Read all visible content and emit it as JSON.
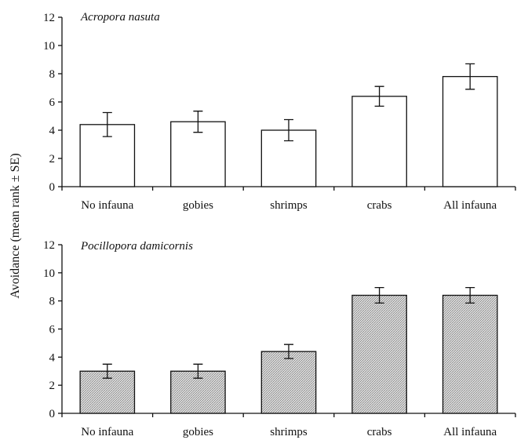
{
  "chart_data": [
    {
      "type": "bar",
      "title": "Acropora nasuta",
      "ylabel": "Avoidance (mean rank ± SE)",
      "categories": [
        "No infauna",
        "gobies",
        "shrimps",
        "crabs",
        "All infauna"
      ],
      "values": [
        4.4,
        4.6,
        4.0,
        6.4,
        7.8
      ],
      "errors": [
        0.85,
        0.75,
        0.75,
        0.7,
        0.9
      ],
      "ylim": [
        0,
        12
      ],
      "yticks": [
        "0",
        "2",
        "4",
        "6",
        "8",
        "10",
        "12"
      ],
      "bar_fill": "#ffffff",
      "grid": false
    },
    {
      "type": "bar",
      "title": "Pocillopora damicornis",
      "ylabel": "Avoidance (mean rank ± SE)",
      "categories": [
        "No infauna",
        "gobies",
        "shrimps",
        "crabs",
        "All infauna"
      ],
      "values": [
        3.0,
        3.0,
        4.4,
        8.4,
        8.4
      ],
      "errors": [
        0.5,
        0.5,
        0.5,
        0.55,
        0.55
      ],
      "ylim": [
        0,
        12
      ],
      "yticks": [
        "0",
        "2",
        "4",
        "6",
        "8",
        "10",
        "12"
      ],
      "bar_fill": "#c8c8c8",
      "grid": false
    }
  ]
}
